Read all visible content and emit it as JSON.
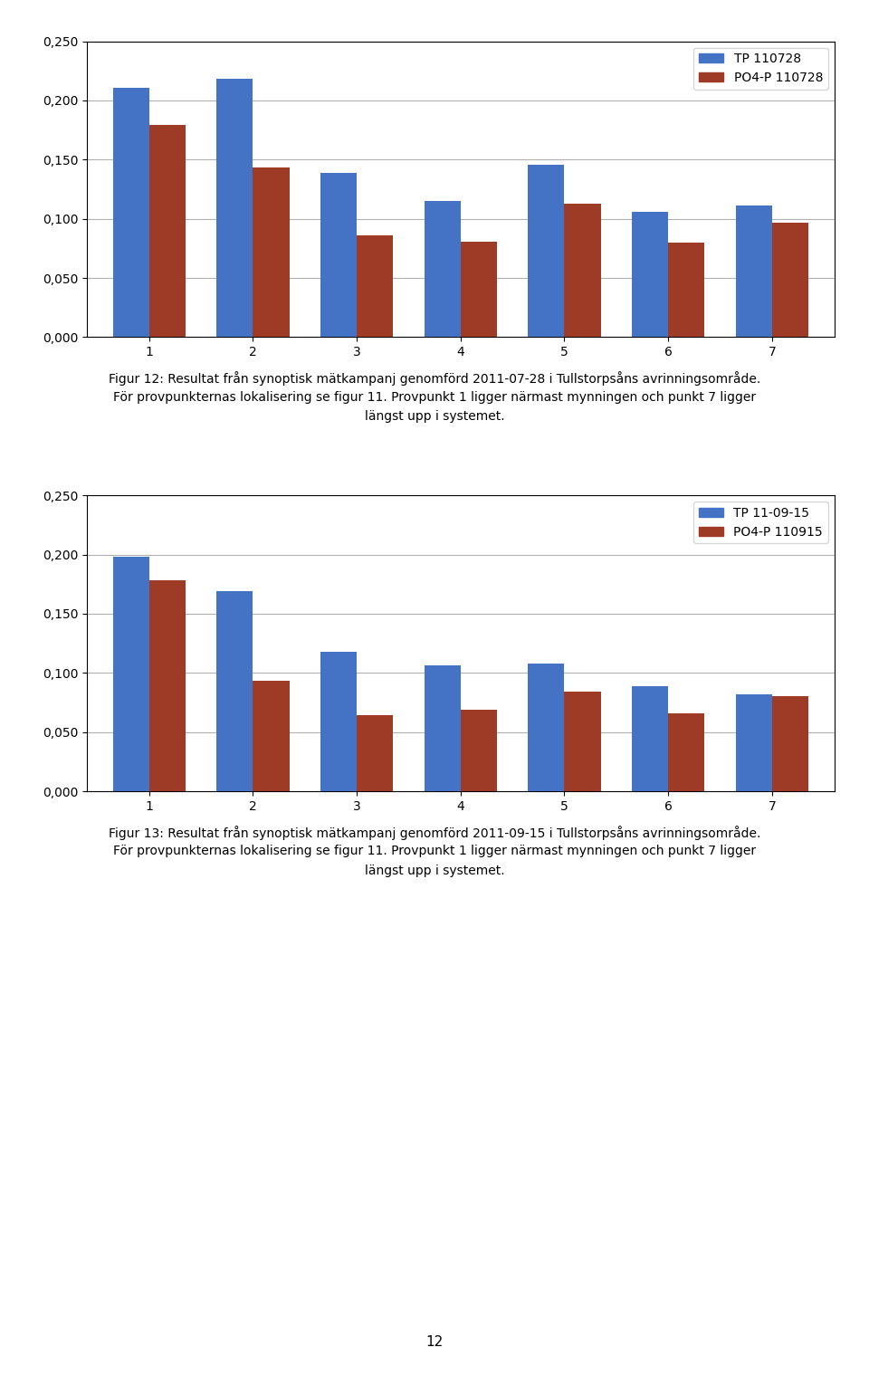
{
  "chart_data": [
    {
      "type": "bar",
      "categories": [
        "1",
        "2",
        "3",
        "4",
        "5",
        "6",
        "7"
      ],
      "series": [
        {
          "name": "TP 110728",
          "color": "#4472C4",
          "values": [
            0.211,
            0.218,
            0.139,
            0.115,
            0.146,
            0.106,
            0.111
          ]
        },
        {
          "name": "PO4-P 110728",
          "color": "#9E3B26",
          "values": [
            0.179,
            0.143,
            0.086,
            0.081,
            0.113,
            0.08,
            0.097
          ]
        }
      ],
      "ylim": [
        0,
        0.25
      ],
      "yticks": [
        {
          "value": 0.0,
          "label": "0,000"
        },
        {
          "value": 0.05,
          "label": "0,050"
        },
        {
          "value": 0.1,
          "label": "0,100"
        },
        {
          "value": 0.15,
          "label": "0,150"
        },
        {
          "value": 0.2,
          "label": "0,200"
        },
        {
          "value": 0.25,
          "label": "0,250"
        }
      ],
      "grid": true,
      "legend": "upper right",
      "annotations": [
        "Figur 12: Resultat från synoptisk mätkampanj genomförd 2011-07-28 i Tullstorpsåns avrinningsområde.",
        "För provpunkternas lokalisering se figur 11. Provpunkt 1 ligger närmast mynningen och punkt 7 ligger",
        "längst upp i systemet."
      ]
    },
    {
      "type": "bar",
      "categories": [
        "1",
        "2",
        "3",
        "4",
        "5",
        "6",
        "7"
      ],
      "series": [
        {
          "name": "TP 11-09-15",
          "color": "#4472C4",
          "values": [
            0.198,
            0.169,
            0.118,
            0.106,
            0.108,
            0.089,
            0.082
          ]
        },
        {
          "name": "PO4-P 110915",
          "color": "#9E3B26",
          "values": [
            0.178,
            0.093,
            0.064,
            0.069,
            0.084,
            0.066,
            0.08
          ]
        }
      ],
      "ylim": [
        0,
        0.25
      ],
      "yticks": [
        {
          "value": 0.0,
          "label": "0,000"
        },
        {
          "value": 0.05,
          "label": "0,050"
        },
        {
          "value": 0.1,
          "label": "0,100"
        },
        {
          "value": 0.15,
          "label": "0,150"
        },
        {
          "value": 0.2,
          "label": "0,200"
        },
        {
          "value": 0.25,
          "label": "0,250"
        }
      ],
      "grid": true,
      "legend": "upper right",
      "annotations": [
        "Figur 13: Resultat från synoptisk mätkampanj genomförd 2011-09-15 i Tullstorpsåns avrinningsområde.",
        "För provpunkternas lokalisering se figur 11. Provpunkt 1 ligger närmast mynningen och punkt 7 ligger",
        "längst upp i systemet."
      ]
    }
  ],
  "annotations": [
    "12"
  ]
}
